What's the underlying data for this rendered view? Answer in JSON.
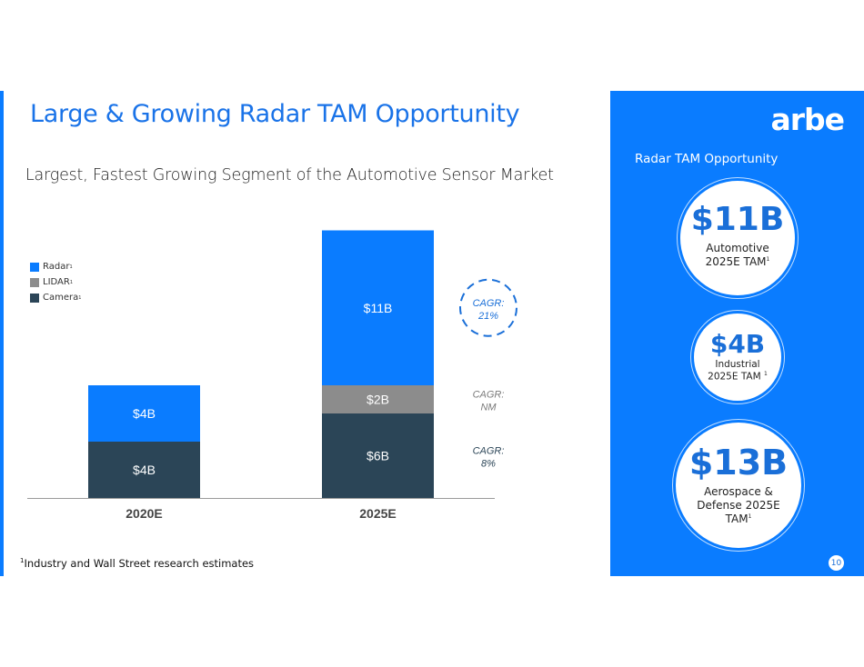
{
  "slide": {
    "title": "Large & Growing Radar TAM Opportunity",
    "subtitle": "Largest, Fastest Growing Segment of the Automotive Sensor Market",
    "footnote_marker": "1",
    "footnote": "Industry and Wall Street research estimates",
    "page_number": "10"
  },
  "panel": {
    "logo": "arbe",
    "title": "Radar TAM Opportunity",
    "circles": [
      {
        "value": "$11B",
        "label_line1": "Automotive",
        "label_line2": "2025E TAM",
        "sup": "1"
      },
      {
        "value": "$4B",
        "label_line1": "Industrial",
        "label_line2": "2025E TAM ",
        "sup": "1"
      },
      {
        "value": "$13B",
        "label_line1": "Aerospace &",
        "label_line2": "Defense 2025E",
        "label_line3": "TAM",
        "sup": "1"
      }
    ]
  },
  "colors": {
    "radar": "#0a7cff",
    "lidar": "#8c8c8c",
    "camera": "#2b4557",
    "accent": "#1a73e8"
  },
  "chart_data": {
    "type": "bar",
    "stacked": true,
    "title": "Largest, Fastest Growing Segment of the Automotive Sensor Market",
    "xlabel": "",
    "ylabel": "",
    "categories": [
      "2020E",
      "2025E"
    ],
    "unit": "$B",
    "ylim": [
      0,
      19
    ],
    "grid": false,
    "legend_position": "top-left",
    "series": [
      {
        "name": "Camera",
        "sup": "1",
        "values": [
          4,
          6
        ],
        "labels": [
          "$4B",
          "$6B"
        ],
        "color": "#2b4557"
      },
      {
        "name": "LIDAR",
        "sup": "1",
        "values": [
          0,
          2
        ],
        "labels": [
          "",
          "$2B"
        ],
        "color": "#8c8c8c"
      },
      {
        "name": "Radar",
        "sup": "1",
        "values": [
          4,
          11
        ],
        "labels": [
          "$4B",
          "$11B"
        ],
        "color": "#0a7cff"
      }
    ],
    "annotations": [
      {
        "series": "Radar",
        "line1": "CAGR:",
        "line2": "21%",
        "style": "dashed-circle"
      },
      {
        "series": "LIDAR",
        "line1": "CAGR:",
        "line2": "NM"
      },
      {
        "series": "Camera",
        "line1": "CAGR:",
        "line2": "8%"
      }
    ]
  }
}
